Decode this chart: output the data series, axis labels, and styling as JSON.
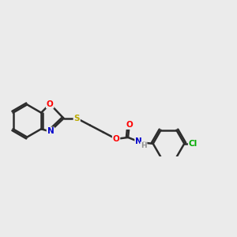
{
  "bg_color": "#ebebeb",
  "bond_color": "#2d2d2d",
  "atom_colors": {
    "O": "#ff0000",
    "N": "#0000cc",
    "S": "#bbaa00",
    "Cl": "#00aa00",
    "C": "#2d2d2d",
    "H": "#909090"
  },
  "bond_width": 1.8,
  "dbo": 0.055,
  "figsize": [
    3.0,
    3.0
  ],
  "dpi": 100
}
